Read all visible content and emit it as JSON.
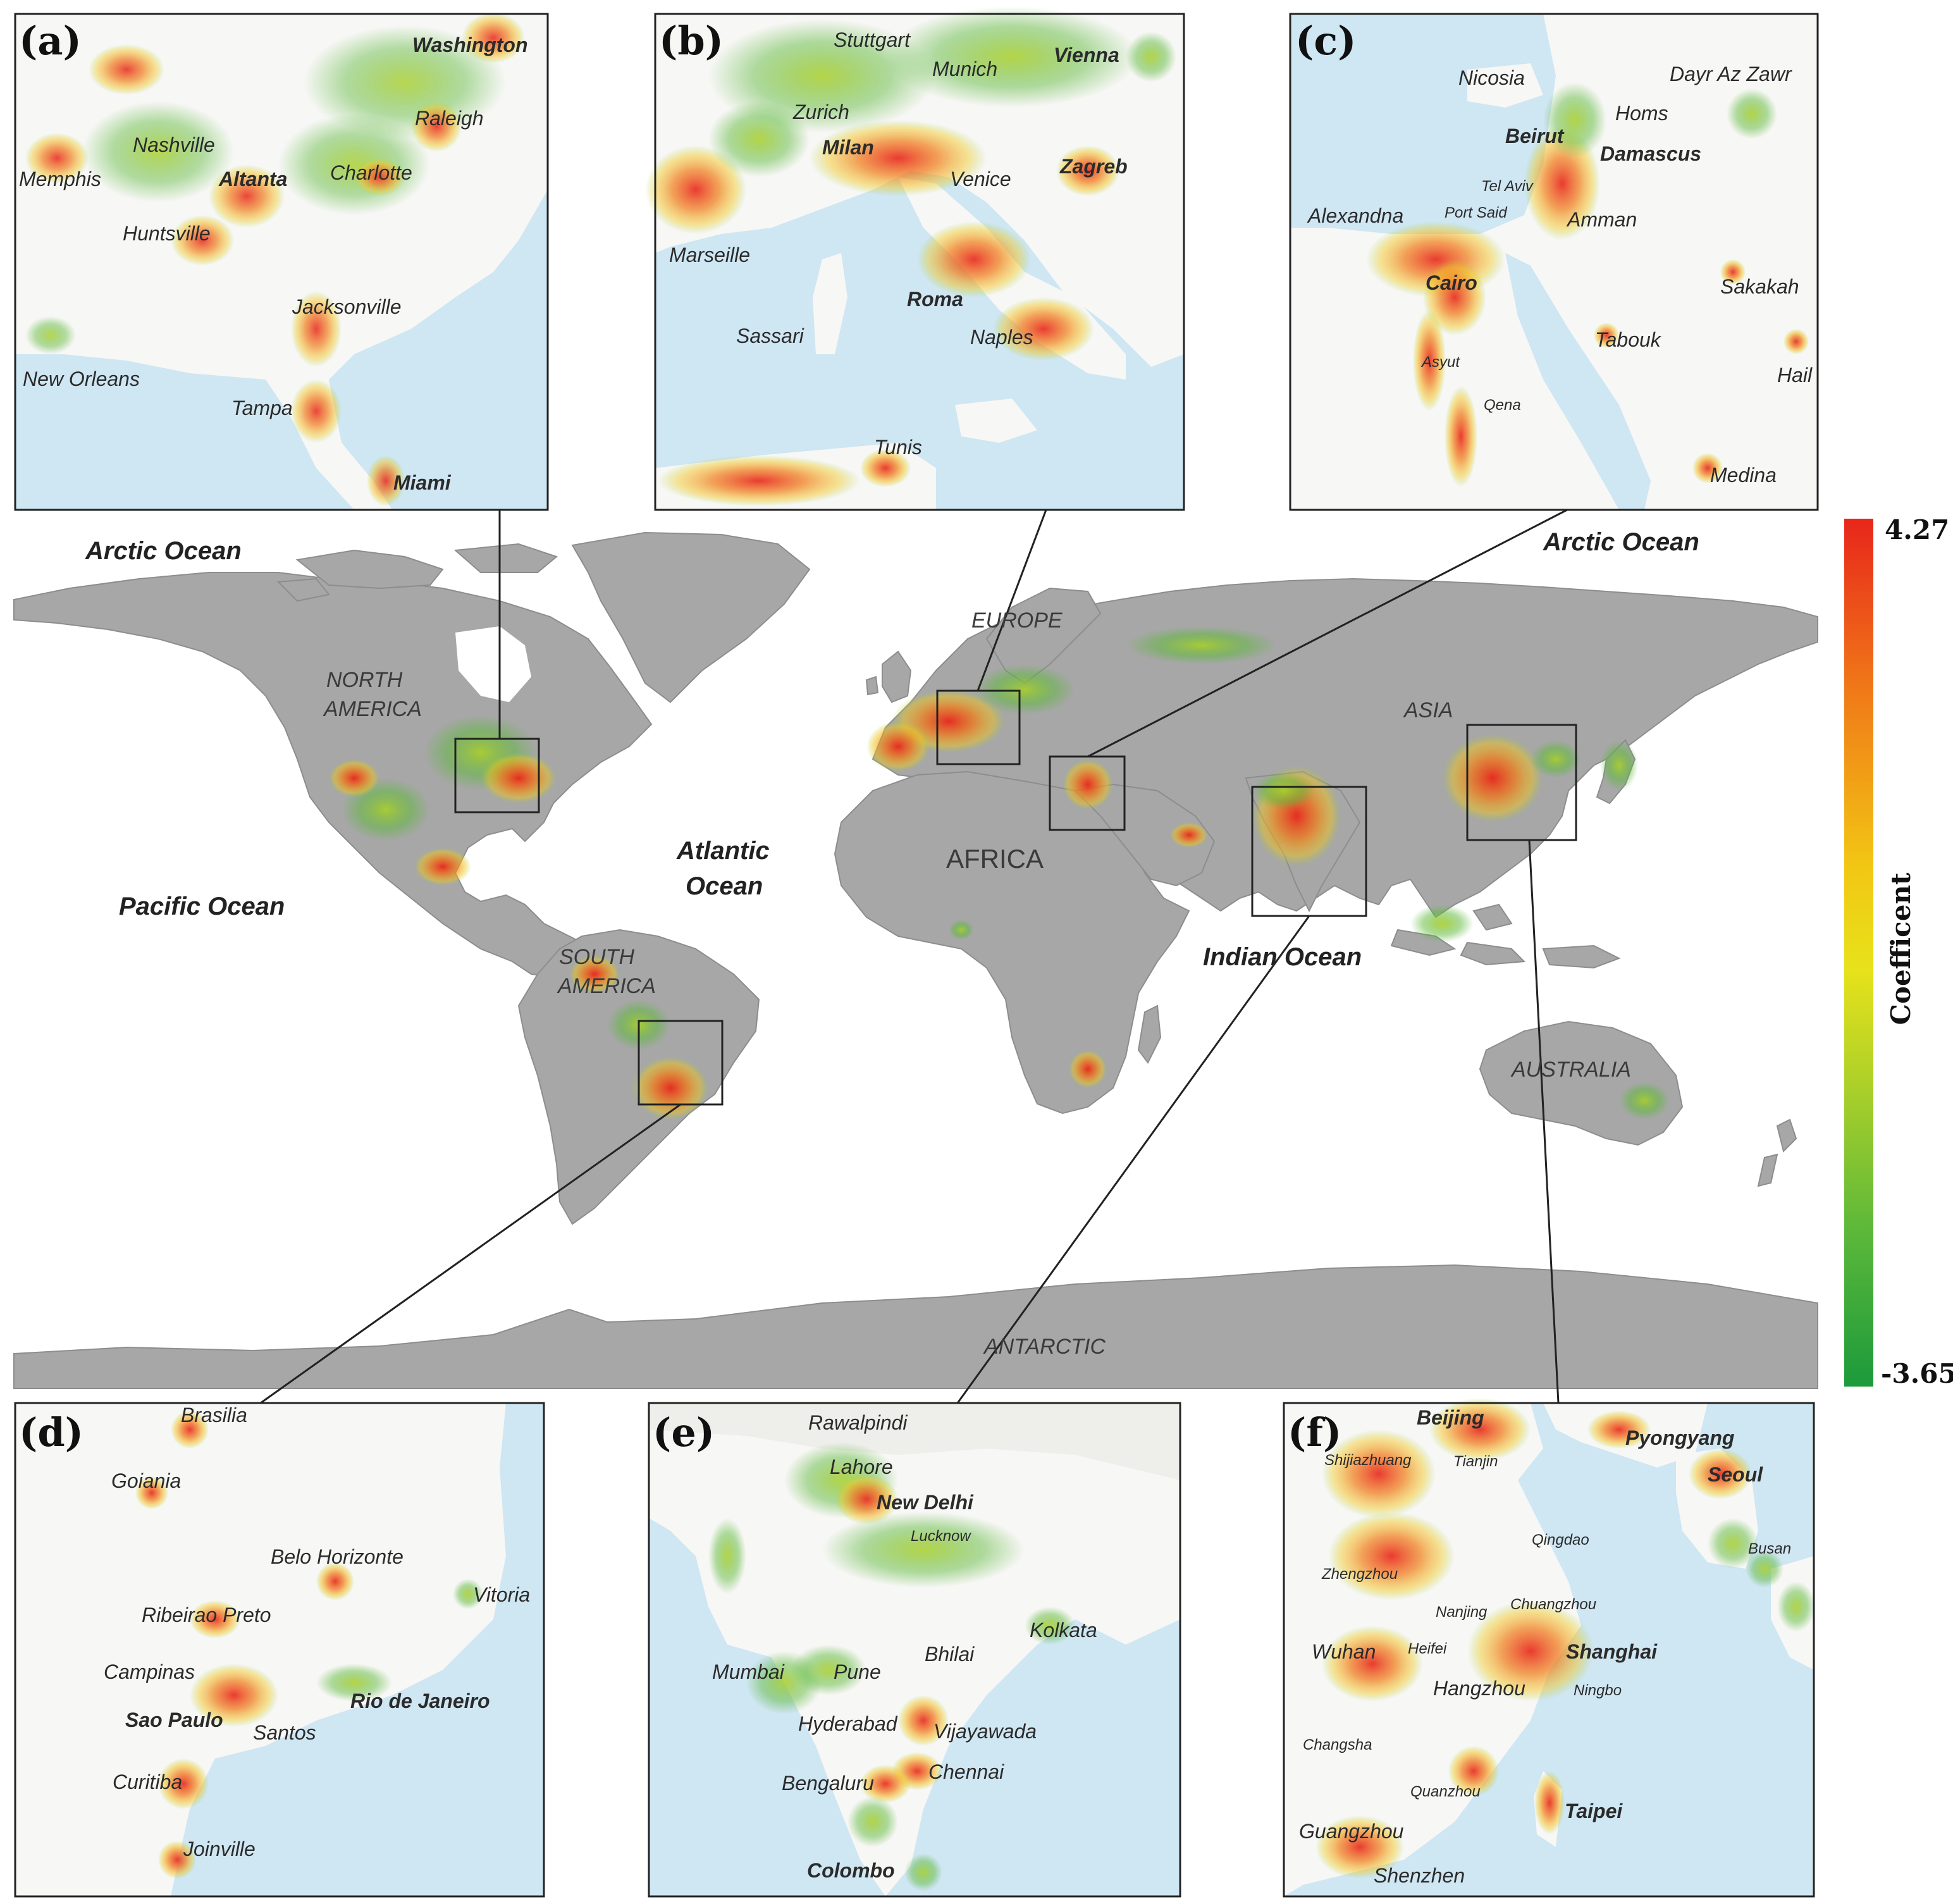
{
  "colors": {
    "land": "#a7a7a7",
    "inset_sea": "#cfe6f3",
    "inset_land": "#f7f7f5",
    "high": "#e8261b",
    "mid": "#f2c614",
    "low": "#1c9a3b",
    "border": "#2a2a2a"
  },
  "oceans": {
    "arctic_left": "Arctic Ocean",
    "arctic_right": "Arctic Ocean",
    "pacific": "Pacific Ocean",
    "atlantic_1": "Atlantic",
    "atlantic_2": "Ocean",
    "indian": "Indian Ocean"
  },
  "continents": {
    "north_america_1": "NORTH",
    "north_america_2": "AMERICA",
    "south_america_1": "SOUTH",
    "south_america_2": "AMERICA",
    "europe": "EUROPE",
    "africa": "AFRICA",
    "asia": "ASIA",
    "australia": "AUSTRALIA",
    "antarctic": "ANTARCTIC"
  },
  "colorbar": {
    "max": "4.27",
    "min": "-3.65",
    "title": "Coefficent",
    "stops": [
      "#e8261b",
      "#f07a18",
      "#f2c614",
      "#e7e21a",
      "#a9cf2a",
      "#5cb83a",
      "#1c9a3b"
    ]
  },
  "panels": {
    "a": {
      "letter": "(a)",
      "cities": [
        {
          "name": "Washington",
          "bold": true
        },
        {
          "name": "Nashville",
          "bold": false
        },
        {
          "name": "Raleigh",
          "bold": false
        },
        {
          "name": "Memphis",
          "bold": false
        },
        {
          "name": "Altanta",
          "bold": true
        },
        {
          "name": "Charlotte",
          "bold": false
        },
        {
          "name": "Huntsville",
          "bold": false
        },
        {
          "name": "Jacksonville",
          "bold": false
        },
        {
          "name": "New Orleans",
          "bold": false
        },
        {
          "name": "Tampa",
          "bold": false
        },
        {
          "name": "Miami",
          "bold": true
        }
      ]
    },
    "b": {
      "letter": "(b)",
      "cities": [
        {
          "name": "Stuttgart",
          "bold": false
        },
        {
          "name": "Munich",
          "bold": false
        },
        {
          "name": "Vienna",
          "bold": true
        },
        {
          "name": "Zurich",
          "bold": false
        },
        {
          "name": "Milan",
          "bold": true
        },
        {
          "name": "Venice",
          "bold": false
        },
        {
          "name": "Zagreb",
          "bold": true
        },
        {
          "name": "Marseille",
          "bold": false
        },
        {
          "name": "Roma",
          "bold": true
        },
        {
          "name": "Sassari",
          "bold": false
        },
        {
          "name": "Naples",
          "bold": false
        },
        {
          "name": "Tunis",
          "bold": false
        }
      ]
    },
    "c": {
      "letter": "(c)",
      "cities": [
        {
          "name": "Nicosia",
          "bold": false
        },
        {
          "name": "Dayr Az Zawr",
          "bold": false
        },
        {
          "name": "Homs",
          "bold": false
        },
        {
          "name": "Beirut",
          "bold": true
        },
        {
          "name": "Damascus",
          "bold": true
        },
        {
          "name": "Tel Aviv",
          "bold": false
        },
        {
          "name": "Alexandna",
          "bold": false
        },
        {
          "name": "Port Said",
          "bold": false
        },
        {
          "name": "Amman",
          "bold": false
        },
        {
          "name": "Cairo",
          "bold": true
        },
        {
          "name": "Sakakah",
          "bold": false
        },
        {
          "name": "Tabouk",
          "bold": false
        },
        {
          "name": "Asyut",
          "bold": false
        },
        {
          "name": "Hail",
          "bold": false
        },
        {
          "name": "Qena",
          "bold": false
        },
        {
          "name": "Medina",
          "bold": false
        }
      ]
    },
    "d": {
      "letter": "(d)",
      "cities": [
        {
          "name": "Brasilia",
          "bold": false
        },
        {
          "name": "Goiania",
          "bold": false
        },
        {
          "name": "Belo Horizonte",
          "bold": false
        },
        {
          "name": "Vitoria",
          "bold": false
        },
        {
          "name": "Ribeirao Preto",
          "bold": false
        },
        {
          "name": "Campinas",
          "bold": false
        },
        {
          "name": "Rio de Janeiro",
          "bold": true
        },
        {
          "name": "Sao Paulo",
          "bold": true
        },
        {
          "name": "Santos",
          "bold": false
        },
        {
          "name": "Curitiba",
          "bold": false
        },
        {
          "name": "Joinville",
          "bold": false
        }
      ]
    },
    "e": {
      "letter": "(e)",
      "cities": [
        {
          "name": "Rawalpindi",
          "bold": false
        },
        {
          "name": "Lahore",
          "bold": false
        },
        {
          "name": "New Delhi",
          "bold": true
        },
        {
          "name": "Lucknow",
          "bold": false
        },
        {
          "name": "Kolkata",
          "bold": false
        },
        {
          "name": "Mumbai",
          "bold": false
        },
        {
          "name": "Pune",
          "bold": false
        },
        {
          "name": "Bhilai",
          "bold": false
        },
        {
          "name": "Hyderabad",
          "bold": false
        },
        {
          "name": "Vijayawada",
          "bold": false
        },
        {
          "name": "Chennai",
          "bold": false
        },
        {
          "name": "Bengaluru",
          "bold": false
        },
        {
          "name": "Colombo",
          "bold": true
        }
      ]
    },
    "f": {
      "letter": "(f)",
      "cities": [
        {
          "name": "Beijing",
          "bold": true
        },
        {
          "name": "Pyongyang",
          "bold": true
        },
        {
          "name": "Shijiazhuang",
          "bold": false
        },
        {
          "name": "Tianjin",
          "bold": false
        },
        {
          "name": "Seoul",
          "bold": true
        },
        {
          "name": "Qingdao",
          "bold": false
        },
        {
          "name": "Busan",
          "bold": false
        },
        {
          "name": "Zhengzhou",
          "bold": false
        },
        {
          "name": "Nanjing",
          "bold": false
        },
        {
          "name": "Chuangzhou",
          "bold": false
        },
        {
          "name": "Wuhan",
          "bold": false
        },
        {
          "name": "Heifei",
          "bold": false
        },
        {
          "name": "Shanghai",
          "bold": true
        },
        {
          "name": "Hangzhou",
          "bold": false
        },
        {
          "name": "Ningbo",
          "bold": false
        },
        {
          "name": "Changsha",
          "bold": false
        },
        {
          "name": "Quanzhou",
          "bold": false
        },
        {
          "name": "Taipei",
          "bold": true
        },
        {
          "name": "Guangzhou",
          "bold": false
        },
        {
          "name": "Shenzhen",
          "bold": false
        }
      ]
    }
  }
}
